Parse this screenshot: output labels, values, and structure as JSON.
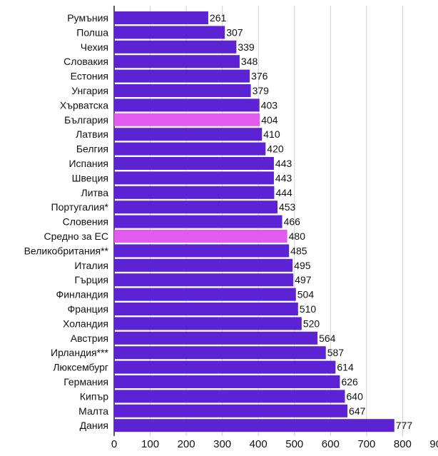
{
  "chart_data": {
    "type": "bar",
    "orientation": "horizontal",
    "categories": [
      "Румъния",
      "Полша",
      "Чехия",
      "Словакия",
      "Естония",
      "Унгария",
      "Хърватска",
      "България",
      "Латвия",
      "Белгия",
      "Испания",
      "Швеция",
      "Литва",
      "Португалия*",
      "Словения",
      "Средно за ЕС",
      "Великобритания**",
      "Италия",
      "Гърция",
      "Финландия",
      "Франция",
      "Холандия",
      "Австрия",
      "Ирландия***",
      "Люксембург",
      "Германия",
      "Кипър",
      "Малта",
      "Дания"
    ],
    "values": [
      261,
      307,
      339,
      348,
      376,
      379,
      403,
      404,
      410,
      420,
      443,
      443,
      444,
      453,
      466,
      480,
      485,
      495,
      497,
      504,
      510,
      520,
      564,
      587,
      614,
      626,
      640,
      647,
      777
    ],
    "highlighted": [
      "България",
      "Средно за ЕС"
    ],
    "xlim": [
      0,
      900
    ],
    "xticks": [
      0,
      100,
      200,
      300,
      400,
      500,
      600,
      700,
      800,
      900
    ],
    "grid": true,
    "title": "",
    "xlabel": "",
    "ylabel": ""
  },
  "colors": {
    "bar": "#5b23d4",
    "highlight": "#e25af0",
    "grid": "#d0d0d0",
    "text": "#111111"
  }
}
